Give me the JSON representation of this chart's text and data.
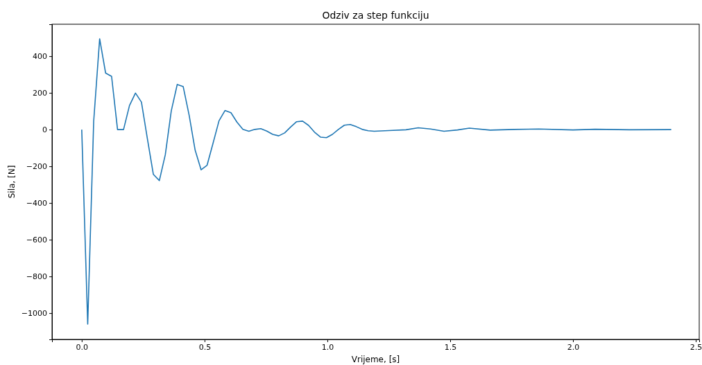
{
  "chart_data": {
    "type": "line",
    "title": "Odziv za step funkciju",
    "xlabel": "Vrijeme, [s]",
    "ylabel": "Sila, [N]",
    "x": [
      0,
      0.0243,
      0.0486,
      0.0729,
      0.0972,
      0.1215,
      0.1458,
      0.1701,
      0.1944,
      0.2187,
      0.243,
      0.2673,
      0.2916,
      0.3159,
      0.3402,
      0.3645,
      0.3888,
      0.4131,
      0.4374,
      0.4617,
      0.486,
      0.5103,
      0.5346,
      0.5589,
      0.5832,
      0.6075,
      0.6318,
      0.6561,
      0.6804,
      0.7047,
      0.729,
      0.7533,
      0.7776,
      0.8019,
      0.8262,
      0.8505,
      0.8748,
      0.8991,
      0.9234,
      0.9477,
      0.972,
      0.9963,
      1.0206,
      1.0449,
      1.0692,
      1.0935,
      1.1178,
      1.1421,
      1.1664,
      1.1907,
      1.25,
      1.32,
      1.37,
      1.42,
      1.475,
      1.53,
      1.578,
      1.663,
      1.76,
      1.86,
      2.0,
      2.09,
      2.23,
      2.4
    ],
    "series": [
      {
        "color": "#1f77b4",
        "values": [
          0,
          -1060,
          45,
          495,
          308,
          290,
          0,
          0,
          131,
          199,
          150,
          -50,
          -244,
          -278,
          -137,
          102,
          246,
          234,
          77,
          -112,
          -219,
          -194,
          -74,
          48,
          104,
          92,
          41,
          1,
          -9,
          1,
          5,
          -8,
          -26,
          -34,
          -18,
          14,
          43,
          46,
          23,
          -14,
          -41,
          -44,
          -26,
          1,
          24,
          28,
          16,
          1,
          -6,
          -9,
          -5,
          -1,
          10,
          3,
          -9,
          -2,
          8,
          -3,
          1,
          3,
          -2,
          2,
          -1,
          0
        ]
      }
    ],
    "xlim": [
      -0.121,
      2.514
    ],
    "ylim": [
      -1143,
      574
    ],
    "xticks": [
      {
        "value": 0,
        "label": "0.0"
      },
      {
        "value": 0.5,
        "label": "0.5"
      },
      {
        "value": 1,
        "label": "1.0"
      },
      {
        "value": 1.5,
        "label": "1.5"
      },
      {
        "value": 2,
        "label": "2.0"
      },
      {
        "value": 2.5,
        "label": "2.5"
      }
    ],
    "yticks": [
      {
        "value": -1000,
        "label": "−1000"
      },
      {
        "value": -800,
        "label": "−800"
      },
      {
        "value": -600,
        "label": "−600"
      },
      {
        "value": -400,
        "label": "−400"
      },
      {
        "value": -200,
        "label": "−200"
      },
      0,
      200,
      400
    ],
    "grid": false,
    "marker": "none",
    "line_style": "solid"
  }
}
